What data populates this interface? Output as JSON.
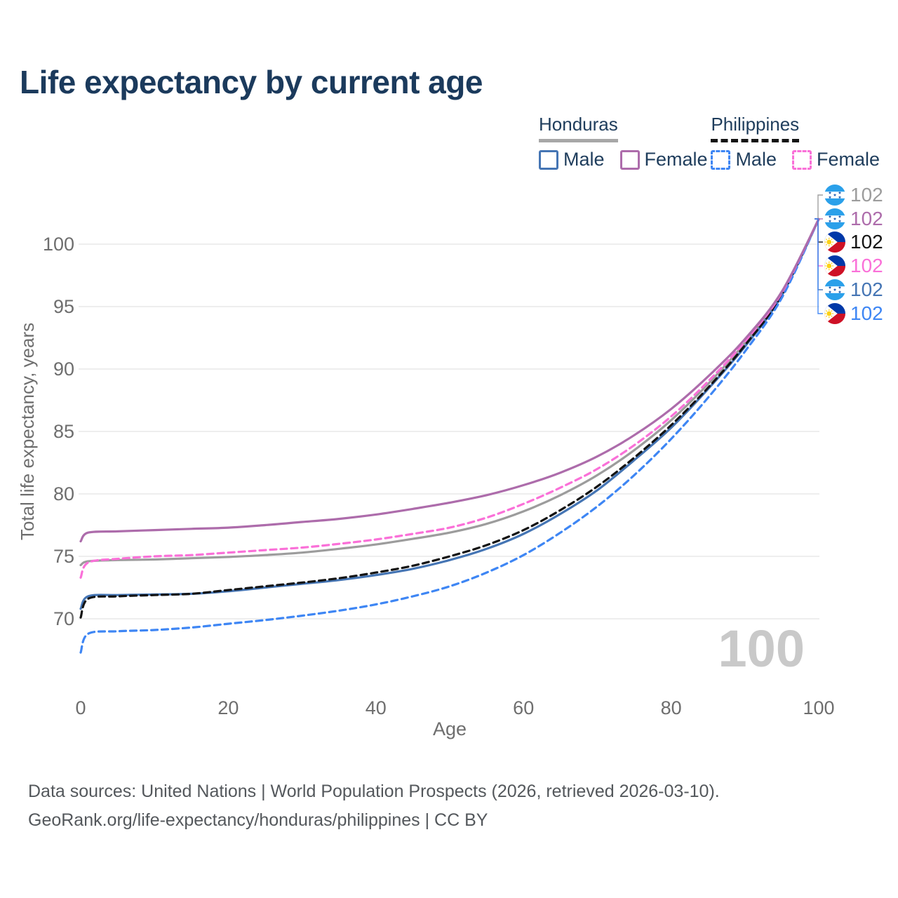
{
  "title": "Life expectancy by current age",
  "legend": {
    "groups": [
      {
        "name": "Honduras",
        "line_style": "solid",
        "underline_color": "#a7a7a7",
        "items": [
          {
            "label": "Male",
            "color": "#4575b4",
            "dashed": false
          },
          {
            "label": "Female",
            "color": "#ad6cab",
            "dashed": false
          }
        ]
      },
      {
        "name": "Philippines",
        "line_style": "dashed",
        "underline_color": "#141414",
        "items": [
          {
            "label": "Male",
            "color": "#3e86f4",
            "dashed": true
          },
          {
            "label": "Female",
            "color": "#fa70d8",
            "dashed": true
          }
        ]
      }
    ]
  },
  "watermark_age": "100",
  "footer": {
    "line1": "Data sources: United Nations | World Population Prospects (2026, retrieved 2026-03-10).",
    "line2": "GeoRank.org/life-expectancy/honduras/philippines | CC BY"
  },
  "chart_data": {
    "type": "line",
    "title": "Life expectancy by current age",
    "xlabel": "Age",
    "ylabel": "Total life expectancy, years",
    "xlim": [
      0,
      100
    ],
    "ylim": [
      66.5,
      103
    ],
    "x_ticks": [
      0,
      20,
      40,
      60,
      80,
      100
    ],
    "y_ticks": [
      70,
      75,
      80,
      85,
      90,
      95,
      100
    ],
    "grid": "horizontal-only",
    "legend_position": "top-right",
    "x": [
      0,
      1,
      5,
      10,
      15,
      20,
      25,
      30,
      35,
      40,
      45,
      50,
      55,
      60,
      65,
      70,
      75,
      80,
      85,
      90,
      95,
      100
    ],
    "series": [
      {
        "name": "Honduras Total",
        "country": "Honduras",
        "sex": "Both",
        "color": "#9c9c9c",
        "dash": "solid",
        "values": [
          74.3,
          74.6,
          74.7,
          74.75,
          74.85,
          74.95,
          75.1,
          75.3,
          75.6,
          75.95,
          76.4,
          76.9,
          77.6,
          78.6,
          79.9,
          81.5,
          83.5,
          85.9,
          88.8,
          92.1,
          96.0,
          102
        ]
      },
      {
        "name": "Honduras Male",
        "country": "Honduras",
        "sex": "Male",
        "color": "#4575b4",
        "dash": "solid",
        "values": [
          70.8,
          71.8,
          71.9,
          71.95,
          72.0,
          72.2,
          72.5,
          72.8,
          73.1,
          73.5,
          74.0,
          74.7,
          75.6,
          76.8,
          78.4,
          80.3,
          82.7,
          85.3,
          88.4,
          91.8,
          95.9,
          102
        ]
      },
      {
        "name": "Philippines Total",
        "country": "Philippines",
        "sex": "Both",
        "color": "#141414",
        "dash": "dashed",
        "values": [
          70.1,
          71.6,
          71.8,
          71.9,
          72.0,
          72.3,
          72.6,
          72.9,
          73.25,
          73.7,
          74.25,
          75.0,
          75.9,
          77.1,
          78.7,
          80.6,
          82.9,
          85.5,
          88.5,
          91.9,
          95.9,
          102
        ]
      },
      {
        "name": "Philippines Male",
        "country": "Philippines",
        "sex": "Male",
        "color": "#3e86f4",
        "dash": "dashed",
        "values": [
          67.3,
          68.8,
          69.0,
          69.1,
          69.3,
          69.6,
          69.9,
          70.25,
          70.65,
          71.15,
          71.8,
          72.6,
          73.7,
          75.1,
          76.9,
          79.0,
          81.5,
          84.4,
          87.7,
          91.4,
          95.7,
          102
        ]
      },
      {
        "name": "Philippines Female",
        "country": "Philippines",
        "sex": "Female",
        "color": "#fa70d8",
        "dash": "dashed",
        "values": [
          73.3,
          74.5,
          74.8,
          75.0,
          75.1,
          75.3,
          75.5,
          75.7,
          76.0,
          76.35,
          76.8,
          77.3,
          78.1,
          79.2,
          80.5,
          82.0,
          83.9,
          86.2,
          89.0,
          92.2,
          96.1,
          102
        ]
      },
      {
        "name": "Honduras Female",
        "country": "Honduras",
        "sex": "Female",
        "color": "#ad6cab",
        "dash": "solid",
        "values": [
          76.2,
          76.9,
          77.0,
          77.1,
          77.2,
          77.3,
          77.5,
          77.75,
          78.0,
          78.35,
          78.8,
          79.3,
          79.9,
          80.7,
          81.7,
          83.0,
          84.7,
          86.8,
          89.4,
          92.4,
          96.2,
          102
        ]
      }
    ],
    "end_labels": [
      {
        "series": "Honduras Total",
        "flag": "honduras",
        "text": "102",
        "color": "#9c9c9c"
      },
      {
        "series": "Honduras Female",
        "flag": "honduras",
        "text": "102",
        "color": "#ad6cab"
      },
      {
        "series": "Philippines Total",
        "flag": "philippines",
        "text": "102",
        "color": "#141414"
      },
      {
        "series": "Philippines Female",
        "flag": "philippines",
        "text": "102",
        "color": "#fa70d8"
      },
      {
        "series": "Honduras Male",
        "flag": "honduras",
        "text": "102",
        "color": "#4575b4"
      },
      {
        "series": "Philippines Male",
        "flag": "philippines",
        "text": "102",
        "color": "#3e86f4"
      }
    ],
    "flag_colors": {
      "honduras_blue": "#2aa0ea",
      "honduras_star": "#2a66b8",
      "ph_navy": "#0038a8",
      "ph_red": "#ce1126",
      "ph_sun": "#fcd116"
    },
    "axis_text_color": "#6e6e6e",
    "grid_color": "#e8e8e8",
    "watermark_color": "#c9c9c9"
  }
}
